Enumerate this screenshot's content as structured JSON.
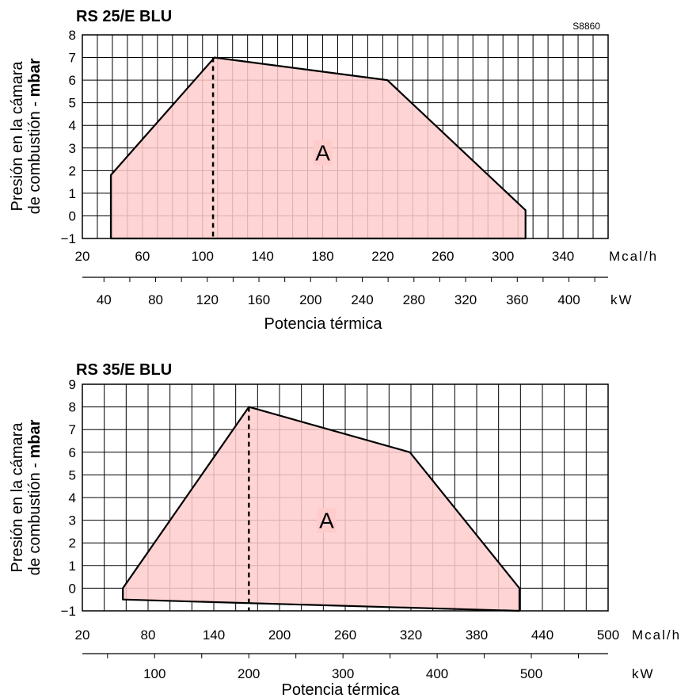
{
  "chart_data": [
    {
      "type": "area",
      "title": "RS 25/E BLU",
      "code": "S8860",
      "ylabel_line1": "Presión en la cámara",
      "ylabel_line2_normal": "de combustión - ",
      "ylabel_line2_bold": "mbar",
      "xlabel": "Potencia térmica",
      "ylim": [
        -1,
        8
      ],
      "y_ticks": [
        -1,
        0,
        1,
        2,
        3,
        4,
        5,
        6,
        7,
        8
      ],
      "x_mcal": {
        "unit": "Mcal/h",
        "range": [
          20,
          370
        ],
        "labels": [
          20,
          60,
          100,
          140,
          180,
          220,
          260,
          300,
          340
        ],
        "minor_step": 10
      },
      "x_kw": {
        "unit": "kW",
        "labels": [
          40,
          80,
          120,
          160,
          200,
          240,
          280,
          320,
          360,
          400
        ],
        "minor_step": 20
      },
      "series": [
        {
          "label": "A",
          "color": "#ffcccc",
          "points_mcal": [
            [
              39,
              -1
            ],
            [
              39,
              1.8
            ],
            [
              108,
              7
            ],
            [
              223,
              6
            ],
            [
              315,
              0.25
            ],
            [
              315,
              -1
            ]
          ]
        }
      ],
      "marker_line": {
        "x_mcal": 107,
        "style": "dashed"
      }
    },
    {
      "type": "area",
      "title": "RS 35/E BLU",
      "ylabel_line1": "Presión en la cámara",
      "ylabel_line2_normal": "de combustión - ",
      "ylabel_line2_bold": "mbar",
      "xlabel": "Potencia térmica",
      "ylim": [
        -1,
        9
      ],
      "y_ticks": [
        -1,
        0,
        1,
        2,
        3,
        4,
        5,
        6,
        7,
        8,
        9
      ],
      "x_mcal": {
        "unit": "Mcal/h",
        "range": [
          20,
          500
        ],
        "labels": [
          20,
          80,
          140,
          200,
          260,
          320,
          380,
          440,
          500
        ],
        "minor_step": 20
      },
      "x_kw": {
        "unit": "kW",
        "labels": [
          100,
          200,
          300,
          400,
          500
        ],
        "minor_step": 50
      },
      "series": [
        {
          "label": "A",
          "color": "#ffcccc",
          "points_mcal": [
            [
              57,
              -0.5
            ],
            [
              57,
              0
            ],
            [
              172,
              8
            ],
            [
              319,
              6
            ],
            [
              419,
              0
            ],
            [
              419,
              -1
            ]
          ]
        }
      ],
      "marker_line": {
        "x_mcal": 172,
        "style": "dashed"
      }
    }
  ]
}
